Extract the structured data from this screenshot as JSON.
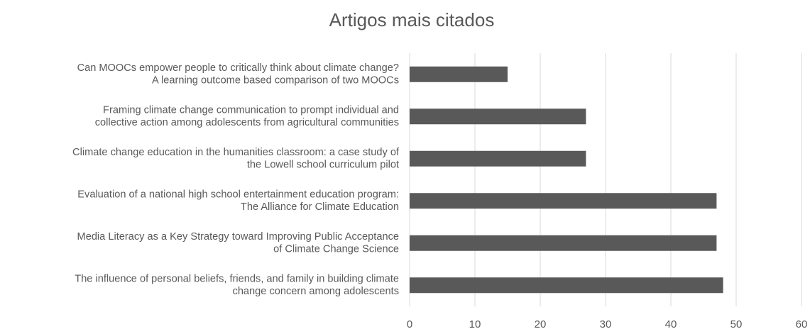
{
  "chart_data": {
    "type": "barh",
    "title": "Artigos mais citados",
    "categories": [
      "Can MOOCs empower people to critically think about climate change?\nA learning outcome based comparison of two MOOCs",
      "Framing climate change communication to prompt individual and\ncollective action among adolescents from agricultural communities",
      "Climate change education in the humanities classroom: a case study of\nthe Lowell school curriculum pilot",
      "Evaluation of a national high school entertainment education program:\nThe Alliance for Climate Education",
      "Media Literacy as a Key Strategy toward Improving Public Acceptance\nof Climate Change Science",
      "The influence of personal beliefs, friends, and family in building climate\nchange concern among adolescents"
    ],
    "values": [
      15,
      27,
      27,
      47,
      47,
      48
    ],
    "color": "#595959",
    "xlim": [
      0,
      60
    ],
    "xticks": [
      0,
      10,
      20,
      30,
      40,
      50,
      60
    ],
    "grid": true
  }
}
